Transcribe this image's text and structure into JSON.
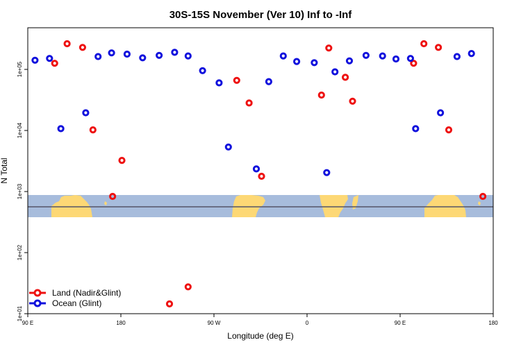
{
  "chart_data": {
    "type": "scatter",
    "title": "30S-15S November (Ver 10)   Inf to -Inf",
    "xlabel": "Longitude (deg E)",
    "ylabel": "N Total",
    "x_ticks": [
      {
        "value": 90,
        "label": "90 E"
      },
      {
        "value": 180,
        "label": "180"
      },
      {
        "value": 270,
        "label": "90 W"
      },
      {
        "value": 360,
        "label": "0"
      },
      {
        "value": 450,
        "label": "90 E"
      },
      {
        "value": 540,
        "label": "180"
      }
    ],
    "y_ticks": [
      {
        "exp": 1,
        "label": "1e+01"
      },
      {
        "exp": 2,
        "label": "1e+02"
      },
      {
        "exp": 3,
        "label": "1e+03"
      },
      {
        "exp": 4,
        "label": "1e+04"
      },
      {
        "exp": 5,
        "label": "1e+05"
      }
    ],
    "xlim": [
      90,
      540
    ],
    "ylim_log10": [
      1,
      5.7
    ],
    "colors": {
      "land": "#ee1111",
      "ocean": "#1111dd",
      "map_ocean": "#a7bcdc",
      "map_land": "#fdd875",
      "latline": "#555566"
    },
    "legend": {
      "position": "bottom-left",
      "entries": [
        "Land (Nadir&Glint)",
        "Ocean (Glint)"
      ]
    },
    "series": [
      {
        "name": "Land (Nadir&Glint)",
        "color": "#ee1111",
        "points": [
          [
            116,
            5.1
          ],
          [
            128,
            5.42
          ],
          [
            143,
            5.36
          ],
          [
            153,
            4.01
          ],
          [
            172,
            2.92
          ],
          [
            181,
            3.51
          ],
          [
            227,
            1.16
          ],
          [
            245,
            1.44
          ],
          [
            292,
            4.82
          ],
          [
            304,
            4.45
          ],
          [
            316,
            3.25
          ],
          [
            374,
            4.58
          ],
          [
            381,
            5.35
          ],
          [
            397,
            4.87
          ],
          [
            404,
            4.48
          ],
          [
            463,
            5.1
          ],
          [
            473,
            5.42
          ],
          [
            487,
            5.36
          ],
          [
            497,
            4.01
          ],
          [
            530,
            2.92
          ]
        ]
      },
      {
        "name": "Ocean (Glint)",
        "color": "#1111dd",
        "points": [
          [
            97,
            5.15
          ],
          [
            111,
            5.18
          ],
          [
            122,
            4.03
          ],
          [
            146,
            4.29
          ],
          [
            158,
            5.21
          ],
          [
            171,
            5.27
          ],
          [
            186,
            5.25
          ],
          [
            201,
            5.19
          ],
          [
            217,
            5.23
          ],
          [
            232,
            5.28
          ],
          [
            245,
            5.22
          ],
          [
            259,
            4.98
          ],
          [
            275,
            4.78
          ],
          [
            284,
            3.73
          ],
          [
            311,
            3.37
          ],
          [
            323,
            4.8
          ],
          [
            337,
            5.22
          ],
          [
            350,
            5.13
          ],
          [
            367,
            5.11
          ],
          [
            379,
            3.31
          ],
          [
            387,
            4.96
          ],
          [
            401,
            5.14
          ],
          [
            417,
            5.23
          ],
          [
            433,
            5.22
          ],
          [
            446,
            5.17
          ],
          [
            460,
            5.18
          ],
          [
            465,
            4.03
          ],
          [
            489,
            4.29
          ],
          [
            505,
            5.21
          ],
          [
            519,
            5.26
          ]
        ]
      }
    ]
  }
}
